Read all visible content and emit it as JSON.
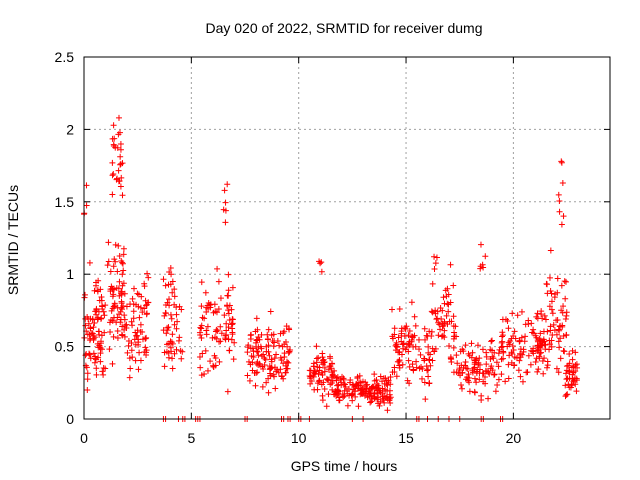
{
  "chart_data": {
    "type": "scatter",
    "title": "Day 020 of 2022, SRMTID for receiver dumg",
    "xlabel": "GPS time / hours",
    "ylabel": "SRMTID / TECUs",
    "xlim": [
      0,
      24.5
    ],
    "ylim": [
      0,
      2.5
    ],
    "x_ticks": [
      0,
      5,
      10,
      15,
      20
    ],
    "x_tick_labels": [
      "0",
      "5",
      "10",
      "15",
      "20"
    ],
    "y_ticks": [
      0,
      0.5,
      1,
      1.5,
      2,
      2.5
    ],
    "y_tick_labels": [
      "0",
      "0.5",
      "1",
      "1.5",
      "2",
      "2.5"
    ],
    "grid": true,
    "marker": "plus",
    "series_color": "#ff0000",
    "clusters": [
      {
        "x_range": [
          0.0,
          1.0
        ],
        "y_center": 0.62,
        "y_spread": 0.28,
        "count": 90
      },
      {
        "x_range": [
          0.0,
          0.15
        ],
        "y_center": 1.6,
        "y_spread": 0.15,
        "count": 4
      },
      {
        "x_range": [
          1.1,
          1.9
        ],
        "y_center": 0.85,
        "y_spread": 0.35,
        "count": 70
      },
      {
        "x_range": [
          1.3,
          1.8
        ],
        "y_center": 1.85,
        "y_spread": 0.3,
        "count": 28
      },
      {
        "x_range": [
          1.9,
          3.0
        ],
        "y_center": 0.6,
        "y_spread": 0.3,
        "count": 70
      },
      {
        "x_range": [
          3.7,
          4.6
        ],
        "y_center": 0.7,
        "y_spread": 0.3,
        "count": 55
      },
      {
        "x_range": [
          5.4,
          7.0
        ],
        "y_center": 0.62,
        "y_spread": 0.3,
        "count": 90
      },
      {
        "x_range": [
          6.5,
          6.7
        ],
        "y_center": 1.5,
        "y_spread": 0.15,
        "count": 6
      },
      {
        "x_range": [
          7.6,
          9.6
        ],
        "y_center": 0.45,
        "y_spread": 0.2,
        "count": 120
      },
      {
        "x_range": [
          10.5,
          11.7
        ],
        "y_center": 0.33,
        "y_spread": 0.15,
        "count": 70
      },
      {
        "x_range": [
          10.9,
          11.1
        ],
        "y_center": 1.08,
        "y_spread": 0.08,
        "count": 4
      },
      {
        "x_range": [
          11.7,
          14.3
        ],
        "y_center": 0.2,
        "y_spread": 0.08,
        "count": 160
      },
      {
        "x_range": [
          14.3,
          15.5
        ],
        "y_center": 0.5,
        "y_spread": 0.2,
        "count": 70
      },
      {
        "x_range": [
          15.6,
          16.2
        ],
        "y_center": 0.4,
        "y_spread": 0.2,
        "count": 30
      },
      {
        "x_range": [
          16.2,
          17.3
        ],
        "y_center": 0.65,
        "y_spread": 0.25,
        "count": 60
      },
      {
        "x_range": [
          16.3,
          16.5
        ],
        "y_center": 1.1,
        "y_spread": 0.1,
        "count": 4
      },
      {
        "x_range": [
          17.3,
          19.3
        ],
        "y_center": 0.35,
        "y_spread": 0.15,
        "count": 90
      },
      {
        "x_range": [
          18.4,
          18.7
        ],
        "y_center": 1.1,
        "y_spread": 0.12,
        "count": 6
      },
      {
        "x_range": [
          19.3,
          21.5
        ],
        "y_center": 0.52,
        "y_spread": 0.2,
        "count": 120
      },
      {
        "x_range": [
          21.5,
          22.5
        ],
        "y_center": 0.7,
        "y_spread": 0.3,
        "count": 60
      },
      {
        "x_range": [
          22.1,
          22.4
        ],
        "y_center": 1.6,
        "y_spread": 0.3,
        "count": 8
      },
      {
        "x_range": [
          22.4,
          23.0
        ],
        "y_center": 0.3,
        "y_spread": 0.15,
        "count": 40
      }
    ],
    "zero_markers_x": [
      3.7,
      3.8,
      4.4,
      4.6,
      4.7,
      5.2,
      5.3,
      5.4,
      7.5,
      7.6,
      9.2,
      9.3,
      9.5,
      9.6,
      10.0,
      10.1,
      10.5,
      12.5,
      13.0,
      15.5,
      15.6,
      16.0,
      16.5,
      17.0,
      17.5,
      18.5,
      18.6,
      19.4,
      19.5
    ]
  }
}
